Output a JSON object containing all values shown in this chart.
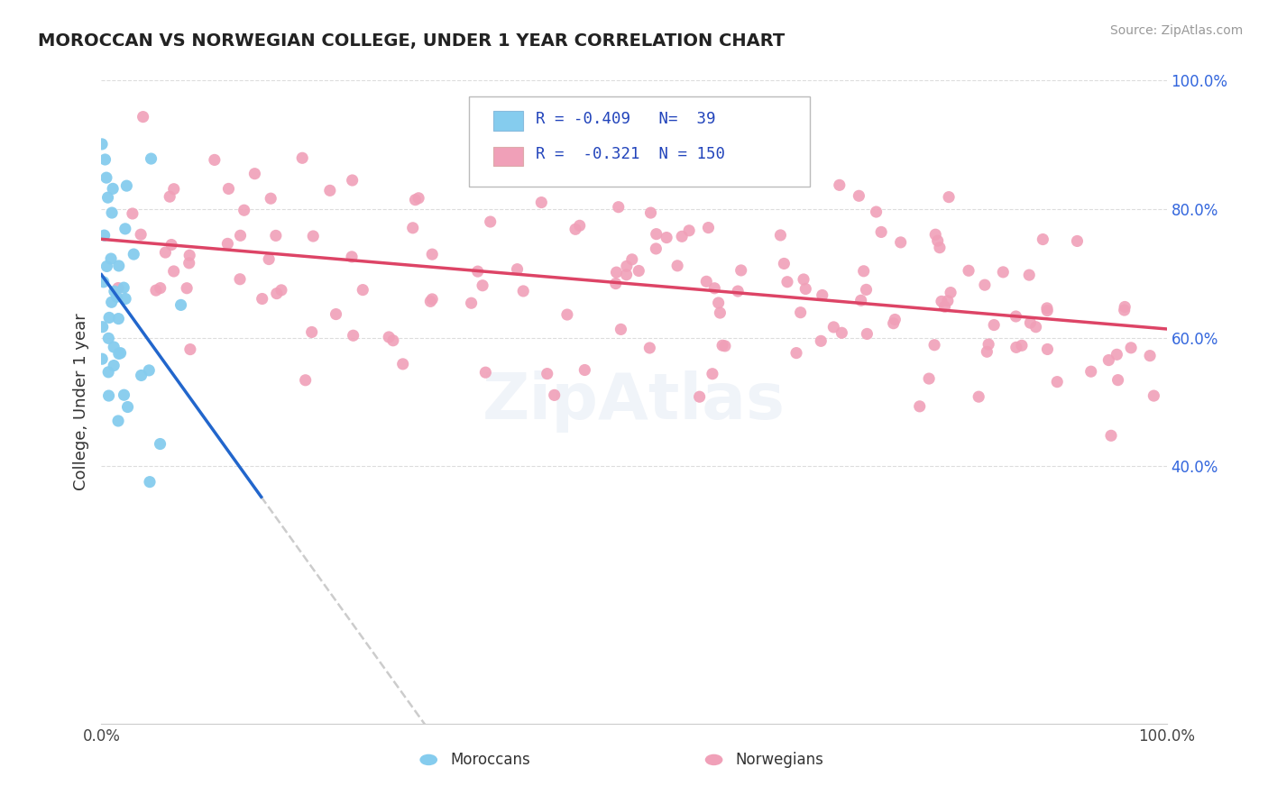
{
  "title": "MOROCCAN VS NORWEGIAN COLLEGE, UNDER 1 YEAR CORRELATION CHART",
  "source": "Source: ZipAtlas.com",
  "ylabel": "College, Under 1 year",
  "yright_ticks": [
    40,
    60,
    80,
    100
  ],
  "yright_labels": [
    "40.0%",
    "60.0%",
    "80.0%",
    "100.0%"
  ],
  "xtick_labels": [
    "0.0%",
    "100.0%"
  ],
  "moroccan_R": -0.409,
  "moroccan_N": 39,
  "norwegian_R": -0.321,
  "norwegian_N": 150,
  "moroccan_dot_color": "#85ccee",
  "norwegian_dot_color": "#f0a0b8",
  "moroccan_line_color": "#2266cc",
  "norwegian_line_color": "#dd4466",
  "dashed_ext_color": "#cccccc",
  "background_color": "#ffffff",
  "grid_color": "#dddddd",
  "title_color": "#222222",
  "legend_text_color": "#2244bb",
  "right_axis_color": "#3366dd",
  "source_color": "#999999"
}
